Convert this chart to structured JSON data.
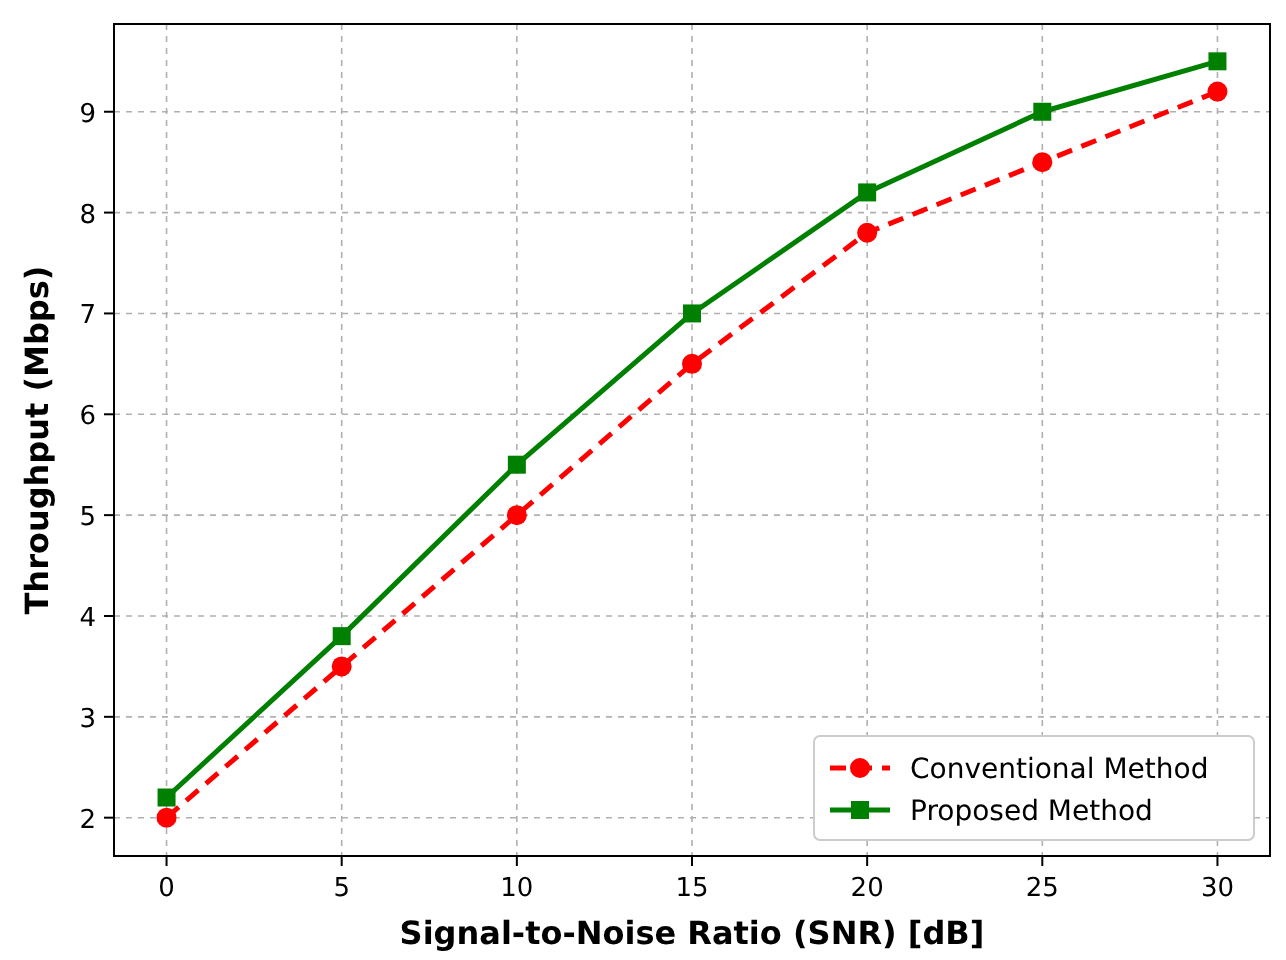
{
  "chart_data": {
    "type": "line",
    "xlabel": "Signal-to-Noise Ratio (SNR) [dB]",
    "ylabel": "Throughput (Mbps)",
    "x": [
      0,
      5,
      10,
      15,
      20,
      25,
      30
    ],
    "series": [
      {
        "name": "Conventional Method",
        "color": "#ff0000",
        "values": [
          2,
          3.5,
          5,
          6.5,
          7.8,
          8.5,
          9.2
        ],
        "marker": "circle",
        "line_style": "dashed"
      },
      {
        "name": "Proposed Method",
        "color": "#008000",
        "values": [
          2.2,
          3.8,
          5.5,
          7,
          8.2,
          9,
          9.5
        ],
        "marker": "square",
        "line_style": "solid"
      }
    ],
    "xlim": [
      -1.5,
      31.5
    ],
    "xticks": [
      0,
      5,
      10,
      15,
      20,
      25,
      30
    ],
    "ylim": [
      1.62,
      9.87
    ],
    "yticks": [
      2,
      3,
      4,
      5,
      6,
      7,
      8,
      9
    ],
    "grid": true,
    "legend": "bottom right"
  }
}
